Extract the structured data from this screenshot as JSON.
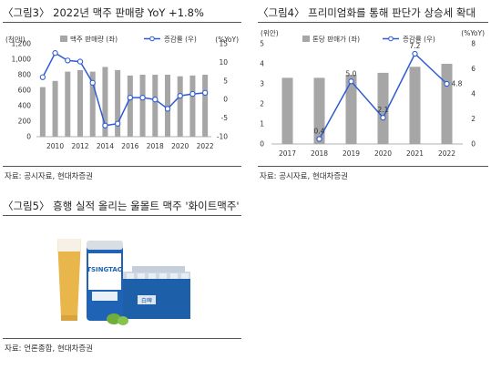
{
  "figures": {
    "fig3": {
      "title": "〈그림3〉 2022년 맥주 판매량 YoY +1.8%",
      "source": "자료: 공시자료, 현대차증권"
    },
    "fig4": {
      "title": "〈그림4〉 프리미엄화를 통해 판단가 상승세 확대",
      "source": "자료: 공시자료, 현대차증권"
    },
    "fig5": {
      "title": "〈그림5〉 흥행 실적 올리는 울몰트 맥주 '화이트맥주'",
      "source": "자료: 언론종합, 현대차증권"
    }
  },
  "colors": {
    "bar": "#a6a6a6",
    "line": "#2f5cd6",
    "marker_fill": "#ffffff"
  },
  "chart_data": [
    {
      "type": "bar",
      "title": "",
      "left_unit": "(천만l)",
      "right_unit": "(%YoY)",
      "legend": [
        "맥주 판매량 (좌)",
        "증감률 (우)"
      ],
      "years": [
        2009,
        2010,
        2011,
        2012,
        2013,
        2014,
        2015,
        2016,
        2017,
        2018,
        2019,
        2020,
        2021,
        2022
      ],
      "x_tick_labels": [
        "2010",
        "2012",
        "2014",
        "2016",
        "2018",
        "2020",
        "2022"
      ],
      "series": [
        {
          "name": "맥주 판매량 (좌)",
          "type": "bar",
          "axis": "left",
          "values": [
            640,
            720,
            840,
            860,
            840,
            900,
            860,
            790,
            800,
            800,
            800,
            780,
            790,
            800
          ]
        },
        {
          "name": "증감률 (우)",
          "type": "line",
          "axis": "right",
          "values": [
            6,
            12.5,
            10.5,
            10.2,
            4.5,
            -7,
            -6.5,
            0.5,
            0.5,
            0,
            -2.5,
            1,
            1.5,
            1.8
          ]
        }
      ],
      "ylim_left": [
        0,
        1200
      ],
      "yticks_left": [
        0,
        200,
        400,
        600,
        800,
        1000,
        1200
      ],
      "ylim_right": [
        -10,
        15
      ],
      "yticks_right": [
        -10,
        -5,
        0,
        5,
        10,
        15
      ]
    },
    {
      "type": "bar",
      "title": "",
      "left_unit": "(위안)",
      "right_unit": "(%YoY)",
      "legend": [
        "톤당 판매가 (좌)",
        "증감률 (우)"
      ],
      "categories": [
        "2017",
        "2018",
        "2019",
        "2020",
        "2021",
        "2022"
      ],
      "series": [
        {
          "name": "톤당 판매가 (좌)",
          "type": "bar",
          "axis": "left",
          "values": [
            3.3,
            3.3,
            3.45,
            3.55,
            3.85,
            4.0
          ]
        },
        {
          "name": "증감률 (우)",
          "type": "line",
          "axis": "right",
          "values": [
            null,
            0.4,
            5.0,
            2.1,
            7.2,
            4.8
          ],
          "labels": [
            "",
            "0.4",
            "5.0",
            "2.1",
            "7.2",
            "4.8"
          ]
        }
      ],
      "ylim_left": [
        0,
        5
      ],
      "yticks_left": [
        0,
        1,
        2,
        3,
        4,
        5
      ],
      "ylim_right": [
        0,
        8
      ],
      "yticks_right": [
        0,
        2,
        4,
        6,
        8
      ]
    }
  ],
  "photo": {
    "brand_text": "TSINGTAO",
    "product_label": "白啤"
  }
}
